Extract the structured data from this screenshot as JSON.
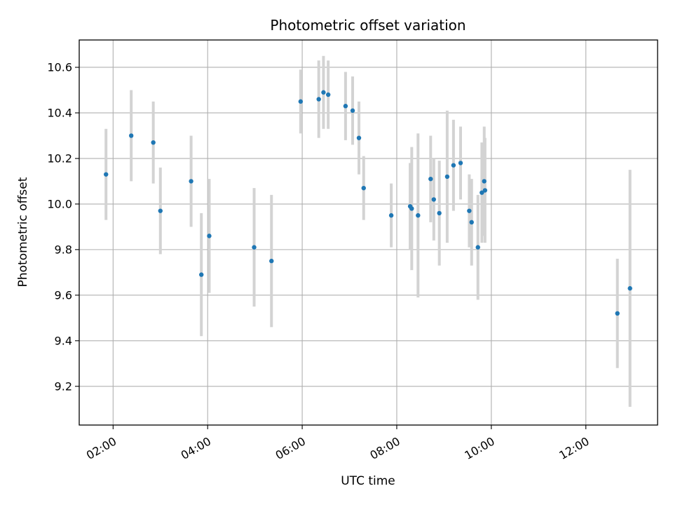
{
  "chart_data": {
    "type": "scatter",
    "title": "Photometric offset variation",
    "xlabel": "UTC time",
    "ylabel": "Photometric offset",
    "x_tick_labels": [
      "02:00",
      "04:00",
      "06:00",
      "08:00",
      "10:00",
      "12:00"
    ],
    "y_tick_labels": [
      "9.2",
      "9.4",
      "9.6",
      "9.8",
      "10.0",
      "10.2",
      "10.4",
      "10.6"
    ],
    "xlim": [
      "01:17",
      "13:31"
    ],
    "ylim": [
      9.03,
      10.72
    ],
    "grid": true,
    "marker_color": "#1f77b4",
    "errorbar_color": "#d3d3d3",
    "points": [
      {
        "x": "01:51",
        "y": 10.13,
        "yerr": 0.2
      },
      {
        "x": "02:23",
        "y": 10.3,
        "yerr": 0.2
      },
      {
        "x": "02:51",
        "y": 10.27,
        "yerr": 0.18
      },
      {
        "x": "03:00",
        "y": 9.97,
        "yerr": 0.19
      },
      {
        "x": "03:39",
        "y": 10.1,
        "yerr": 0.2
      },
      {
        "x": "03:52",
        "y": 9.69,
        "yerr": 0.27
      },
      {
        "x": "04:02",
        "y": 9.86,
        "yerr": 0.25
      },
      {
        "x": "04:59",
        "y": 9.81,
        "yerr": 0.26
      },
      {
        "x": "05:21",
        "y": 9.75,
        "yerr": 0.29
      },
      {
        "x": "05:58",
        "y": 10.45,
        "yerr": 0.14
      },
      {
        "x": "06:21",
        "y": 10.46,
        "yerr": 0.17
      },
      {
        "x": "06:27",
        "y": 10.49,
        "yerr": 0.16
      },
      {
        "x": "06:33",
        "y": 10.48,
        "yerr": 0.15
      },
      {
        "x": "06:55",
        "y": 10.43,
        "yerr": 0.15
      },
      {
        "x": "07:04",
        "y": 10.41,
        "yerr": 0.15
      },
      {
        "x": "07:12",
        "y": 10.29,
        "yerr": 0.16
      },
      {
        "x": "07:18",
        "y": 10.07,
        "yerr": 0.14
      },
      {
        "x": "07:53",
        "y": 9.95,
        "yerr": 0.14
      },
      {
        "x": "08:17",
        "y": 9.99,
        "yerr": 0.19
      },
      {
        "x": "08:19",
        "y": 9.98,
        "yerr": 0.27
      },
      {
        "x": "08:27",
        "y": 9.95,
        "yerr": 0.36
      },
      {
        "x": "08:43",
        "y": 10.11,
        "yerr": 0.19
      },
      {
        "x": "08:47",
        "y": 10.02,
        "yerr": 0.18
      },
      {
        "x": "08:54",
        "y": 9.96,
        "yerr": 0.23
      },
      {
        "x": "09:04",
        "y": 10.12,
        "yerr": 0.29
      },
      {
        "x": "09:12",
        "y": 10.17,
        "yerr": 0.2
      },
      {
        "x": "09:21",
        "y": 10.18,
        "yerr": 0.16
      },
      {
        "x": "09:32",
        "y": 9.97,
        "yerr": 0.16
      },
      {
        "x": "09:35",
        "y": 9.92,
        "yerr": 0.19
      },
      {
        "x": "09:43",
        "y": 9.81,
        "yerr": 0.23
      },
      {
        "x": "09:48",
        "y": 10.05,
        "yerr": 0.22
      },
      {
        "x": "09:51",
        "y": 10.1,
        "yerr": 0.24
      },
      {
        "x": "09:52",
        "y": 10.06,
        "yerr": 0.23
      },
      {
        "x": "12:40",
        "y": 9.52,
        "yerr": 0.24
      },
      {
        "x": "12:56",
        "y": 9.63,
        "yerr": 0.52
      }
    ]
  }
}
